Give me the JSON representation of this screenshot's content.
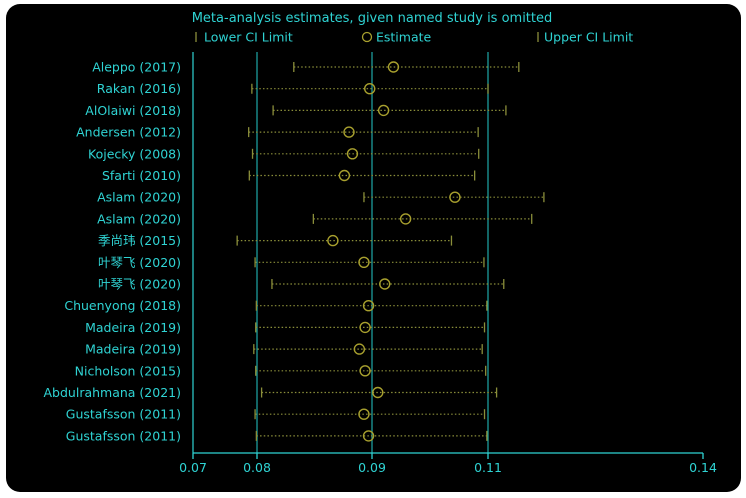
{
  "chart_data": {
    "type": "forest",
    "title": "Meta-analysis estimates, given named study is omitted",
    "legend": {
      "position": "top",
      "items": [
        {
          "key": "lower",
          "label": "Lower CI Limit"
        },
        {
          "key": "estimate",
          "label": "Estimate"
        },
        {
          "key": "upper",
          "label": "Upper CI Limit"
        }
      ]
    },
    "x_axis": {
      "ticks": [
        0.07,
        0.08,
        0.09,
        0.11,
        0.14
      ],
      "range": [
        0.07,
        0.14
      ]
    },
    "reference_lines": [
      0.08,
      0.09,
      0.11
    ],
    "studies": [
      {
        "label": "Aleppo (2017)",
        "lower": 0.0832,
        "estimate": 0.0937,
        "upper": 0.1143
      },
      {
        "label": "Rakan (2016)",
        "lower": 0.0792,
        "estimate": 0.0898,
        "upper": 0.11
      },
      {
        "label": "AlOlaiwi (2018)",
        "lower": 0.0814,
        "estimate": 0.092,
        "upper": 0.1125
      },
      {
        "label": "Andersen (2012)",
        "lower": 0.0787,
        "estimate": 0.088,
        "upper": 0.1083
      },
      {
        "label": "Kojecky (2008)",
        "lower": 0.0793,
        "estimate": 0.0883,
        "upper": 0.1084
      },
      {
        "label": "Sfarti (2010)",
        "lower": 0.0788,
        "estimate": 0.0876,
        "upper": 0.1077
      },
      {
        "label": "Aslam (2020)",
        "lower": 0.0893,
        "estimate": 0.1043,
        "upper": 0.1178
      },
      {
        "label": "Aslam (2020)",
        "lower": 0.0849,
        "estimate": 0.0958,
        "upper": 0.1161
      },
      {
        "label": "季尚玮 (2015)",
        "lower": 0.0769,
        "estimate": 0.0866,
        "upper": 0.1037
      },
      {
        "label": "叶琴飞 (2020)",
        "lower": 0.0797,
        "estimate": 0.0893,
        "upper": 0.1093
      },
      {
        "label": "叶琴飞 (2020)",
        "lower": 0.0813,
        "estimate": 0.0922,
        "upper": 0.1122
      },
      {
        "label": "Chuenyong (2018)",
        "lower": 0.0799,
        "estimate": 0.0897,
        "upper": 0.1098
      },
      {
        "label": "Madeira (2019)",
        "lower": 0.0798,
        "estimate": 0.0894,
        "upper": 0.1094
      },
      {
        "label": "Madeira (2019)",
        "lower": 0.0795,
        "estimate": 0.0889,
        "upper": 0.109
      },
      {
        "label": "Nicholson (2015)",
        "lower": 0.0798,
        "estimate": 0.0894,
        "upper": 0.1096
      },
      {
        "label": "Abdulrahmana (2021)",
        "lower": 0.0804,
        "estimate": 0.091,
        "upper": 0.1112
      },
      {
        "label": "Gustafsson (2011)",
        "lower": 0.0797,
        "estimate": 0.0893,
        "upper": 0.1094
      },
      {
        "label": "Gustafsson (2011)",
        "lower": 0.0799,
        "estimate": 0.0897,
        "upper": 0.1098
      }
    ],
    "colors": {
      "background": "#000000",
      "text": "#2fd3d3",
      "axis": "#2fd3d3",
      "reference_line": "#1fa8a8",
      "interval": "#8a8e3a",
      "estimate": "#a8a02e"
    }
  }
}
